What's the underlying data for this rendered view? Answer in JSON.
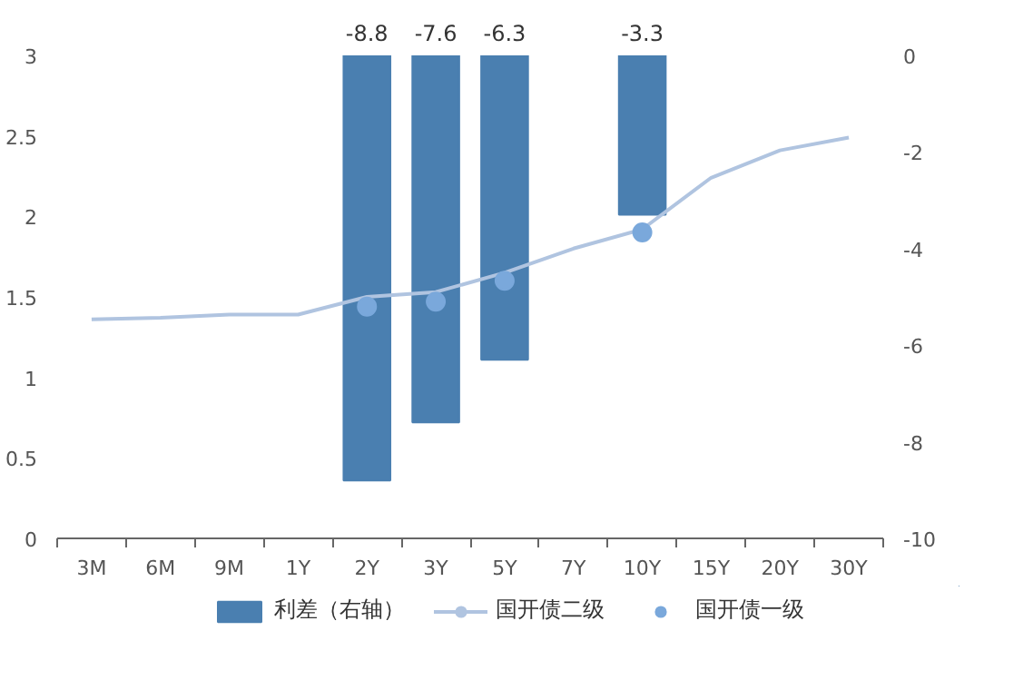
{
  "chart_data": {
    "type": "line",
    "categories": [
      "3M",
      "6M",
      "9M",
      "1Y",
      "2Y",
      "3Y",
      "5Y",
      "7Y",
      "10Y",
      "15Y",
      "20Y",
      "30Y"
    ],
    "series": [
      {
        "name": "利差（右轴）",
        "type": "bar",
        "axis": "y2",
        "color": "#4a7fb0",
        "values": [
          null,
          null,
          null,
          null,
          -8.8,
          -7.6,
          -6.3,
          null,
          -3.3,
          null,
          null,
          null
        ],
        "data_labels": true
      },
      {
        "name": "国开债二级",
        "color": "#b0c4e0",
        "values": [
          1.36,
          1.37,
          1.39,
          1.39,
          1.5,
          1.53,
          1.65,
          1.8,
          1.92,
          2.24,
          2.41,
          2.49
        ]
      },
      {
        "name": "国开债一级",
        "type": "scatter",
        "color": "#7aa8db",
        "values": [
          null,
          null,
          null,
          null,
          1.44,
          1.47,
          1.6,
          null,
          1.9,
          null,
          null,
          null
        ]
      }
    ],
    "ylim": [
      0,
      3
    ],
    "yticks": [
      0,
      0.5,
      1,
      1.5,
      2,
      2.5,
      3
    ],
    "y2lim": [
      -10,
      0
    ],
    "y2ticks": [
      -10,
      -8,
      -6,
      -4,
      -2,
      0
    ],
    "grid": false,
    "legend": "bottom"
  }
}
